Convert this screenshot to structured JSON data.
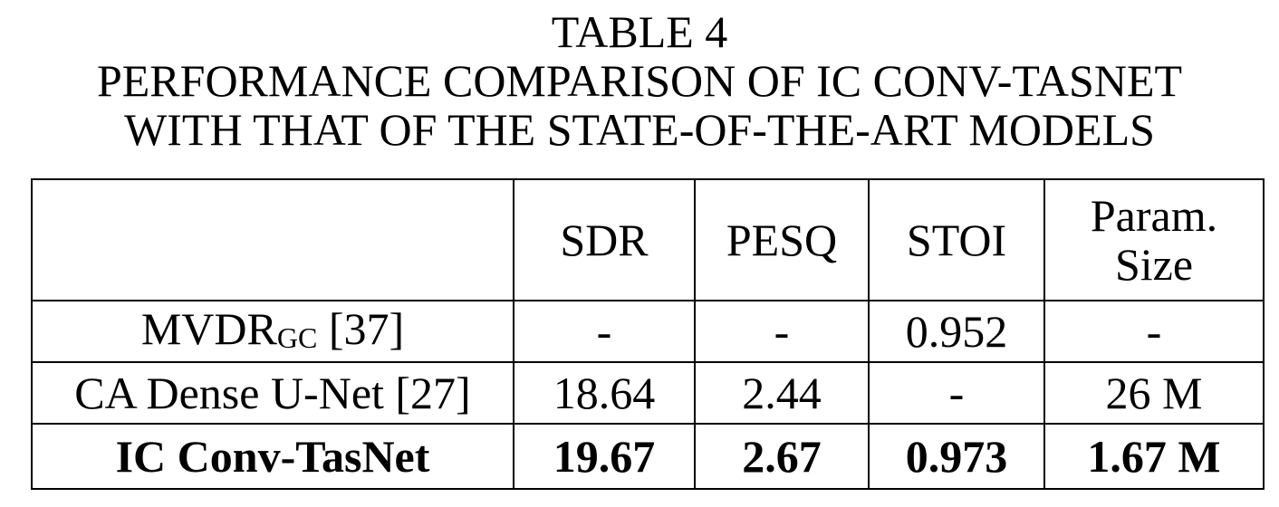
{
  "caption": {
    "label": "TABLE 4",
    "title_line1": "PERFORMANCE COMPARISON OF IC CONV-TASNET",
    "title_line2": "WITH THAT OF THE STATE-OF-THE-ART MODELS"
  },
  "table": {
    "headers": {
      "corner": "",
      "sdr": "SDR",
      "pesq": "PESQ",
      "stoi": "STOI",
      "param_line1": "Param.",
      "param_line2": "Size"
    },
    "rows": [
      {
        "model_main": "MVDR",
        "model_sub": "GC",
        "model_ref": " [37]",
        "sdr": "-",
        "pesq": "-",
        "stoi": "0.952",
        "param": "-"
      },
      {
        "model": "CA Dense U-Net [27]",
        "sdr": "18.64",
        "pesq": "2.44",
        "stoi": "-",
        "param": "26 M"
      },
      {
        "model": "IC Conv-TasNet",
        "sdr": "19.67",
        "pesq": "2.67",
        "stoi": "0.973",
        "param": "1.67 M"
      }
    ]
  }
}
